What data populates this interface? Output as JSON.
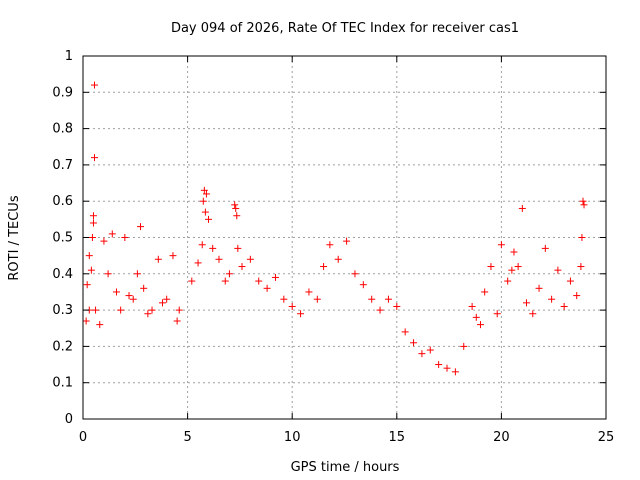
{
  "chart_data": {
    "type": "scatter",
    "title": "Day 094 of 2026, Rate Of TEC Index for receiver cas1",
    "xlabel": "GPS time / hours",
    "ylabel": "ROTI / TECUs",
    "xlim": [
      0,
      25
    ],
    "ylim": [
      0,
      1
    ],
    "xticks": [
      "0",
      "5",
      "10",
      "15",
      "20",
      "25"
    ],
    "yticks": [
      "0",
      "0.1",
      "0.2",
      "0.3",
      "0.4",
      "0.5",
      "0.6",
      "0.7",
      "0.8",
      "0.9",
      "1"
    ],
    "grid": true,
    "marker": "+",
    "color": "#ff0000",
    "series": [
      {
        "points": [
          [
            0.55,
            0.92
          ],
          [
            0.55,
            0.72
          ],
          [
            0.5,
            0.56
          ],
          [
            0.5,
            0.54
          ],
          [
            0.45,
            0.5
          ],
          [
            0.3,
            0.45
          ],
          [
            0.4,
            0.41
          ],
          [
            0.2,
            0.37
          ],
          [
            0.3,
            0.3
          ],
          [
            0.15,
            0.27
          ],
          [
            0.6,
            0.3
          ],
          [
            0.8,
            0.26
          ],
          [
            1.0,
            0.49
          ],
          [
            1.2,
            0.4
          ],
          [
            1.4,
            0.51
          ],
          [
            1.6,
            0.35
          ],
          [
            1.8,
            0.3
          ],
          [
            2.0,
            0.5
          ],
          [
            2.2,
            0.34
          ],
          [
            2.4,
            0.33
          ],
          [
            2.6,
            0.4
          ],
          [
            2.75,
            0.53
          ],
          [
            2.9,
            0.36
          ],
          [
            3.1,
            0.29
          ],
          [
            3.3,
            0.3
          ],
          [
            3.6,
            0.44
          ],
          [
            3.8,
            0.32
          ],
          [
            4.0,
            0.33
          ],
          [
            4.3,
            0.45
          ],
          [
            4.5,
            0.27
          ],
          [
            4.6,
            0.3
          ],
          [
            5.2,
            0.38
          ],
          [
            5.5,
            0.43
          ],
          [
            5.7,
            0.48
          ],
          [
            5.8,
            0.63
          ],
          [
            5.9,
            0.62
          ],
          [
            5.75,
            0.6
          ],
          [
            5.85,
            0.57
          ],
          [
            6.0,
            0.55
          ],
          [
            6.2,
            0.47
          ],
          [
            6.5,
            0.44
          ],
          [
            6.8,
            0.38
          ],
          [
            7.0,
            0.4
          ],
          [
            7.25,
            0.59
          ],
          [
            7.3,
            0.58
          ],
          [
            7.35,
            0.56
          ],
          [
            7.4,
            0.47
          ],
          [
            7.6,
            0.42
          ],
          [
            8.0,
            0.44
          ],
          [
            8.4,
            0.38
          ],
          [
            8.8,
            0.36
          ],
          [
            9.2,
            0.39
          ],
          [
            9.6,
            0.33
          ],
          [
            10.0,
            0.31
          ],
          [
            10.4,
            0.29
          ],
          [
            10.8,
            0.35
          ],
          [
            11.2,
            0.33
          ],
          [
            11.5,
            0.42
          ],
          [
            11.8,
            0.48
          ],
          [
            12.2,
            0.44
          ],
          [
            12.6,
            0.49
          ],
          [
            13.0,
            0.4
          ],
          [
            13.4,
            0.37
          ],
          [
            13.8,
            0.33
          ],
          [
            14.2,
            0.3
          ],
          [
            14.6,
            0.33
          ],
          [
            15.0,
            0.31
          ],
          [
            15.4,
            0.24
          ],
          [
            15.8,
            0.21
          ],
          [
            16.2,
            0.18
          ],
          [
            16.6,
            0.19
          ],
          [
            17.0,
            0.15
          ],
          [
            17.4,
            0.14
          ],
          [
            17.8,
            0.13
          ],
          [
            18.2,
            0.2
          ],
          [
            18.6,
            0.31
          ],
          [
            18.8,
            0.28
          ],
          [
            19.0,
            0.26
          ],
          [
            19.2,
            0.35
          ],
          [
            19.5,
            0.42
          ],
          [
            19.8,
            0.29
          ],
          [
            20.0,
            0.48
          ],
          [
            20.3,
            0.38
          ],
          [
            20.5,
            0.41
          ],
          [
            20.6,
            0.46
          ],
          [
            20.8,
            0.42
          ],
          [
            21.0,
            0.58
          ],
          [
            21.2,
            0.32
          ],
          [
            21.5,
            0.29
          ],
          [
            21.8,
            0.36
          ],
          [
            22.1,
            0.47
          ],
          [
            22.4,
            0.33
          ],
          [
            22.7,
            0.41
          ],
          [
            23.0,
            0.31
          ],
          [
            23.3,
            0.38
          ],
          [
            23.6,
            0.34
          ],
          [
            23.9,
            0.6
          ],
          [
            23.95,
            0.59
          ],
          [
            23.85,
            0.5
          ],
          [
            23.8,
            0.42
          ]
        ]
      }
    ]
  }
}
